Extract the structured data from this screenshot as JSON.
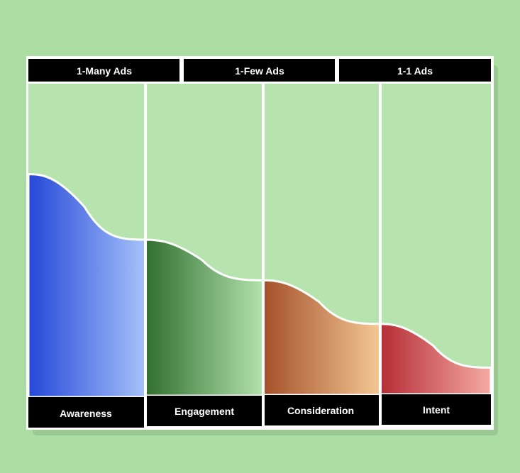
{
  "diagram": {
    "header_labels": [
      "1-Many Ads",
      "1-Few Ads",
      "1-1 Ads"
    ],
    "stages": [
      {
        "label": "Awareness",
        "level_start": 0.71,
        "level_end": 0.5,
        "colors": [
          "#2447d8",
          "#a6c2fa"
        ]
      },
      {
        "label": "Engagement",
        "level_start": 0.5,
        "level_end": 0.37,
        "colors": [
          "#2f6f2f",
          "#b4e2ad"
        ]
      },
      {
        "label": "Consideration",
        "level_start": 0.37,
        "level_end": 0.23,
        "colors": [
          "#a4502a",
          "#f4c894"
        ]
      },
      {
        "label": "Intent",
        "level_start": 0.23,
        "level_end": 0.09,
        "colors": [
          "#b52d35",
          "#f5aaa3"
        ]
      }
    ],
    "background_color": "#acdea3",
    "panel_fill": "#b6e3ae",
    "bar_color": "#000000",
    "border_color": "#ffffff"
  }
}
